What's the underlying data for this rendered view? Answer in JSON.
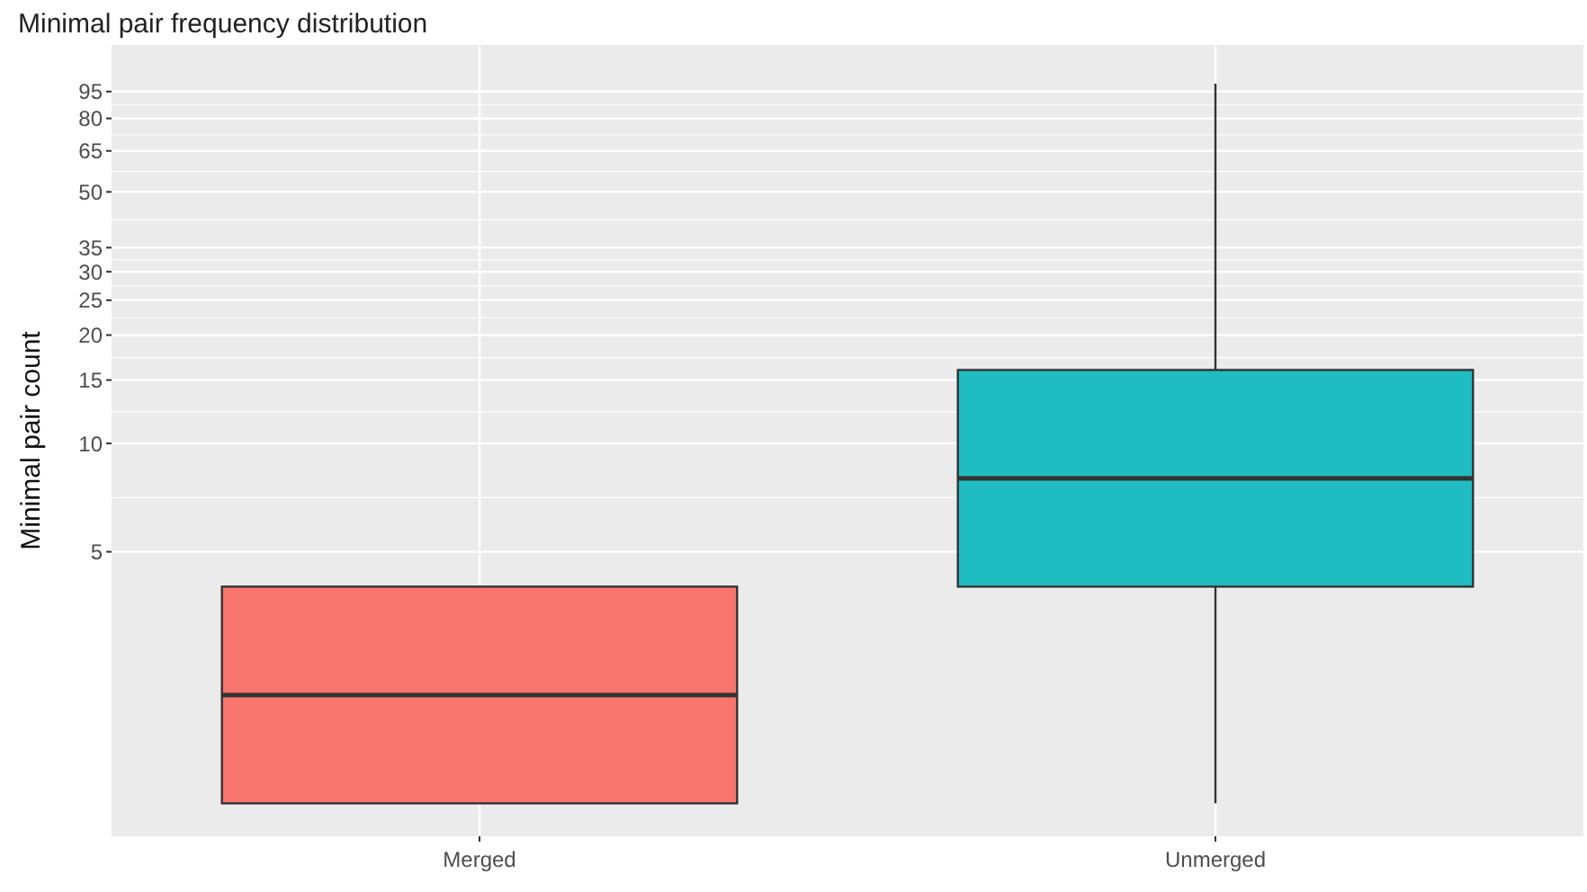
{
  "chart_data": {
    "type": "box",
    "title": "Minimal pair frequency distribution",
    "ylabel": "Minimal pair count",
    "categories": [
      "Merged",
      "Unmerged"
    ],
    "boxes": [
      {
        "low": 1,
        "q1": 1,
        "median": 2,
        "q3": 4,
        "high": 4
      },
      {
        "low": 1,
        "q1": 4,
        "median": 8,
        "q3": 16,
        "high": 100
      }
    ],
    "colors": [
      "#f8766d",
      "#1fbcc1"
    ],
    "log": true,
    "ylim": [
      0.81,
      128
    ],
    "yticks": [
      5,
      10,
      15,
      20,
      25,
      30,
      35,
      50,
      65,
      80,
      95
    ],
    "grid": true
  }
}
